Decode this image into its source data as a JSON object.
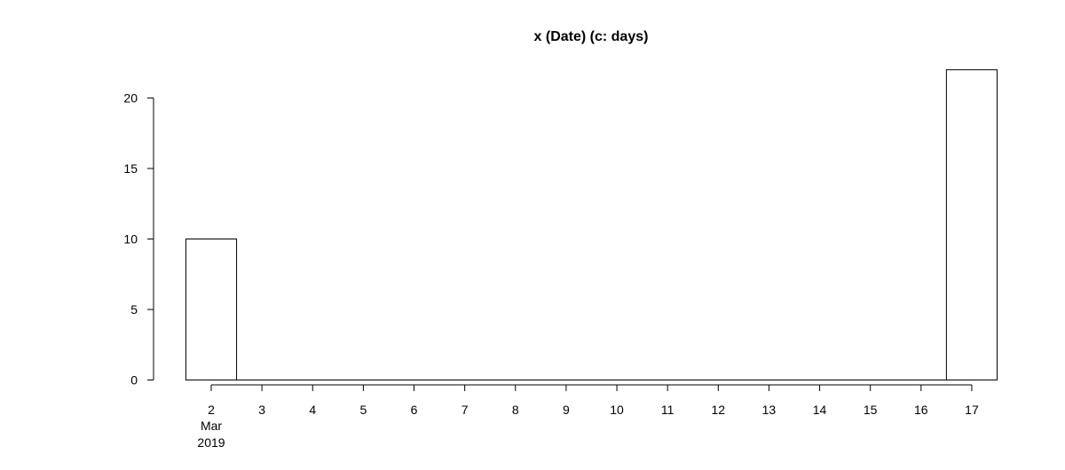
{
  "chart_data": {
    "type": "bar",
    "title": "x (Date) (c: days)",
    "xlabel": "",
    "ylabel": "",
    "categories": [
      "2019-03-02",
      "2019-03-03",
      "2019-03-04",
      "2019-03-05",
      "2019-03-06",
      "2019-03-07",
      "2019-03-08",
      "2019-03-09",
      "2019-03-10",
      "2019-03-11",
      "2019-03-12",
      "2019-03-13",
      "2019-03-14",
      "2019-03-15",
      "2019-03-16",
      "2019-03-17"
    ],
    "values": [
      10,
      0,
      0,
      0,
      0,
      0,
      0,
      0,
      0,
      0,
      0,
      0,
      0,
      0,
      0,
      22
    ],
    "x_tick_labels": [
      "2",
      "3",
      "4",
      "5",
      "6",
      "7",
      "8",
      "9",
      "10",
      "11",
      "12",
      "13",
      "14",
      "15",
      "16",
      "17"
    ],
    "x_tick_sublabels": [
      "Mar",
      "2019"
    ],
    "y_ticks": [
      0,
      5,
      10,
      15,
      20
    ],
    "ylim": [
      0,
      22
    ],
    "grid": false,
    "legend": "none",
    "bar_fill": "#ffffff",
    "bar_stroke": "#000000"
  }
}
